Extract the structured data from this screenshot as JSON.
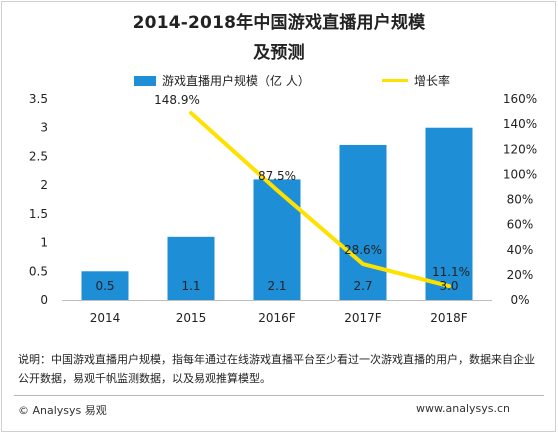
{
  "title_line1": "2014-2018年中国游戏直播用户规模",
  "title_line2": "及预测",
  "legend": {
    "bar_label": "游戏直播用户规模（亿 人）",
    "line_label": "增长率"
  },
  "note": "说明：中国游戏直播用户规模，指每年通过在线游戏直播平台至少看过一次游戏直播的用户，数据来自企业公开数据，易观千帆监测数据，以及易观推算模型。",
  "footer": {
    "left": "© Analysys 易观",
    "right": "www.analysys.cn"
  },
  "colors": {
    "bar": "#1e8fd6",
    "line": "#ffe100"
  },
  "chart_data": {
    "type": "bar",
    "categories": [
      "2014",
      "2015",
      "2016F",
      "2017F",
      "2018F"
    ],
    "series": [
      {
        "name": "游戏直播用户规模（亿 人）",
        "type": "bar",
        "axis": "left",
        "values": [
          0.5,
          1.1,
          2.1,
          2.7,
          3.0
        ],
        "data_labels": [
          "0.5",
          "1.1",
          "2.1",
          "2.7",
          "3.0"
        ]
      },
      {
        "name": "增长率",
        "type": "line",
        "axis": "right",
        "x": [
          "2015",
          "2016F",
          "2017F",
          "2018F"
        ],
        "values": [
          148.9,
          87.5,
          28.6,
          11.1
        ],
        "data_labels": [
          "148.9%",
          "87.5%",
          "28.6%",
          "11.1%"
        ]
      }
    ],
    "y_left": {
      "lim": [
        0,
        3.5
      ],
      "ticks": [
        "0",
        "0.5",
        "1",
        "1.5",
        "2",
        "2.5",
        "3",
        "3.5"
      ]
    },
    "y_right": {
      "lim": [
        0,
        160
      ],
      "ticks": [
        "0%",
        "20%",
        "40%",
        "60%",
        "80%",
        "100%",
        "120%",
        "140%",
        "160%"
      ]
    },
    "grid": false,
    "legend_position": "top"
  }
}
